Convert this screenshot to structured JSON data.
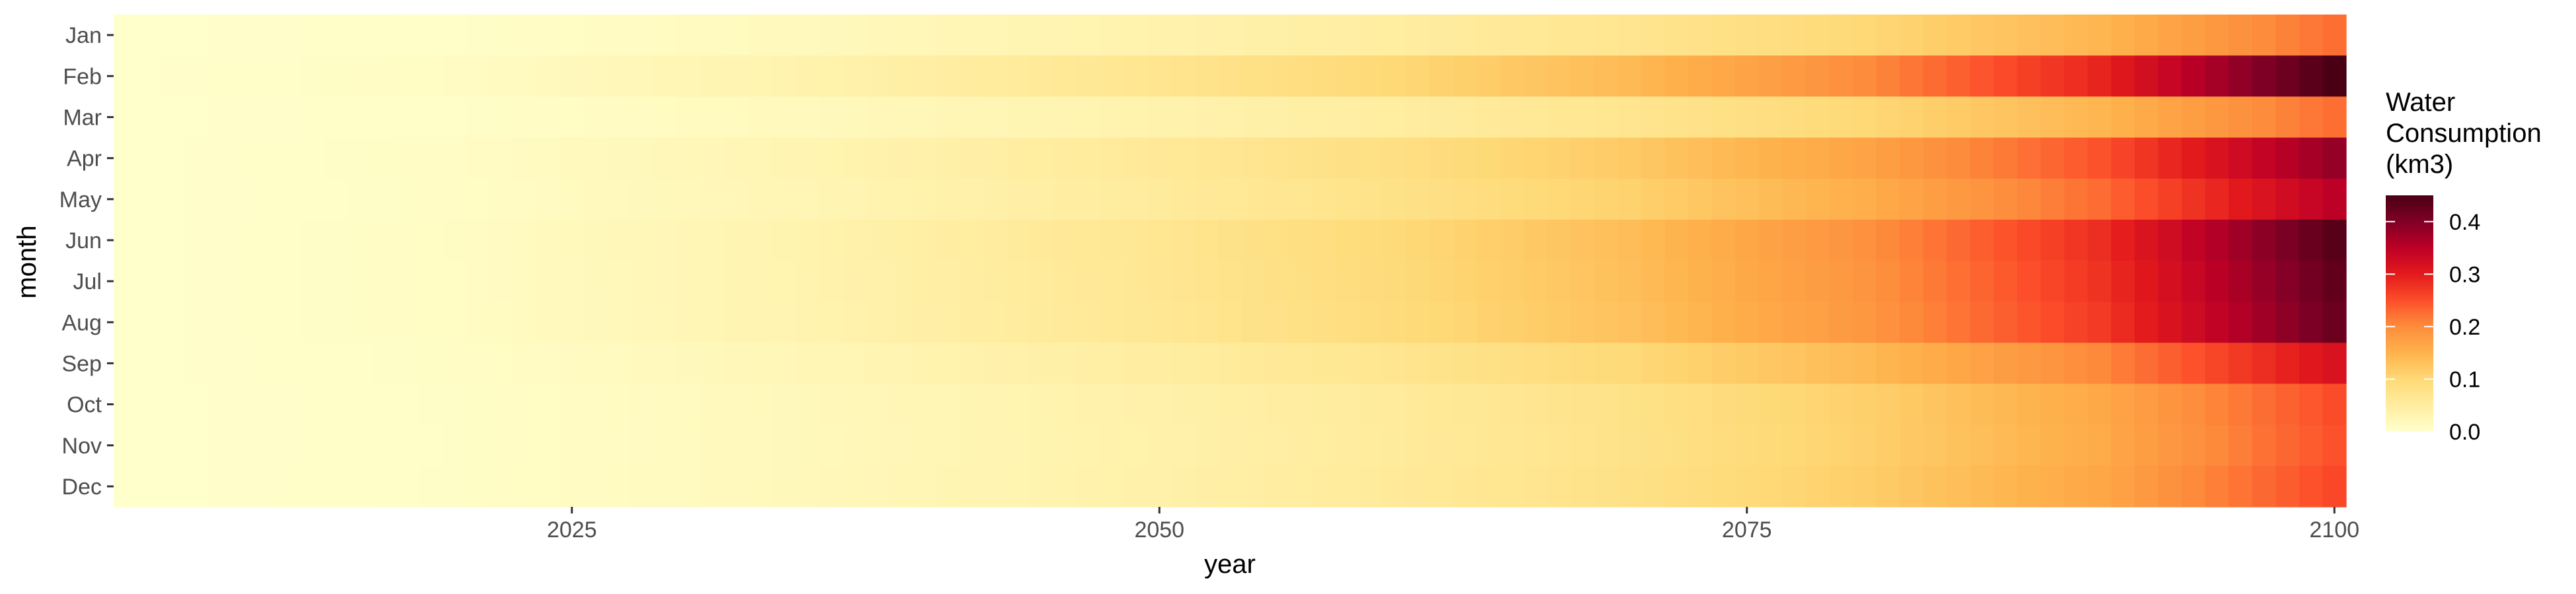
{
  "chart_data": {
    "type": "heatmap",
    "title": "",
    "xlabel": "year",
    "ylabel": "month",
    "x_range": [
      2006,
      2100
    ],
    "x_ticks": [
      {
        "value": 2025,
        "label": "2025"
      },
      {
        "value": 2050,
        "label": "2050"
      },
      {
        "value": 2075,
        "label": "2075"
      },
      {
        "value": 2100,
        "label": "2100"
      }
    ],
    "months": [
      "Jan",
      "Feb",
      "Mar",
      "Apr",
      "May",
      "Jun",
      "Jul",
      "Aug",
      "Sep",
      "Oct",
      "Nov",
      "Dec"
    ],
    "month_scale": [
      0.5,
      1.0,
      0.5,
      0.85,
      0.78,
      0.97,
      0.95,
      0.93,
      0.7,
      0.56,
      0.55,
      0.57
    ],
    "value_at_year": [
      {
        "year": 2006,
        "value": 0.0
      },
      {
        "year": 2020,
        "value": 0.01
      },
      {
        "year": 2035,
        "value": 0.035
      },
      {
        "year": 2050,
        "value": 0.07
      },
      {
        "year": 2060,
        "value": 0.1
      },
      {
        "year": 2070,
        "value": 0.14
      },
      {
        "year": 2080,
        "value": 0.2
      },
      {
        "year": 2090,
        "value": 0.29
      },
      {
        "year": 2100,
        "value": 0.45
      }
    ],
    "legend": {
      "title_lines": [
        "Water",
        "Consumption",
        "(km3)"
      ],
      "min": 0.0,
      "max": 0.45,
      "ticks": [
        {
          "value": 0.0,
          "label": "0.0"
        },
        {
          "value": 0.1,
          "label": "0.1"
        },
        {
          "value": 0.2,
          "label": "0.2"
        },
        {
          "value": 0.3,
          "label": "0.3"
        },
        {
          "value": 0.4,
          "label": "0.4"
        }
      ]
    },
    "color_scale": [
      "#ffffcc",
      "#ffeda0",
      "#fed976",
      "#feb24c",
      "#fd8d3c",
      "#fc4e2a",
      "#e31a1c",
      "#bd0026",
      "#800026",
      "#4a0014"
    ]
  }
}
